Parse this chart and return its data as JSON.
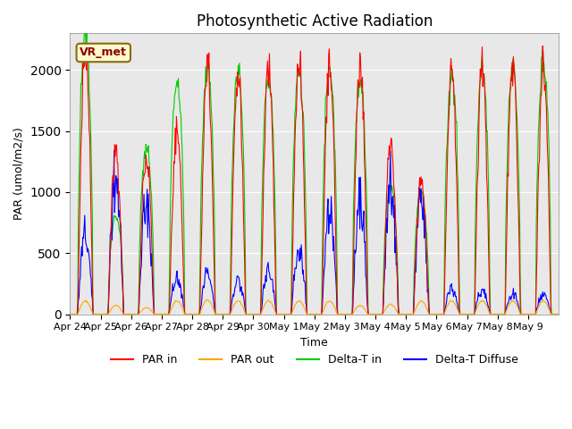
{
  "title": "Photosynthetic Active Radiation",
  "ylabel": "PAR (umol/m2/s)",
  "xlabel": "Time",
  "ylim": [
    0,
    2300
  ],
  "annotation": "VR_met",
  "background_color": "#ffffff",
  "plot_bg_color": "#e8e8e8",
  "colors": {
    "par_in": "#ff0000",
    "par_out": "#ffa500",
    "delta_t_in": "#00cc00",
    "delta_t_diffuse": "#0000ff"
  },
  "legend_labels": [
    "PAR in",
    "PAR out",
    "Delta-T in",
    "Delta-T Diffuse"
  ],
  "tick_labels": [
    "Apr 24",
    "Apr 25",
    "Apr 26",
    "Apr 27",
    "Apr 28",
    "Apr 29",
    "Apr 30",
    "May 1",
    "May 2",
    "May 3",
    "May 4",
    "May 5",
    "May 6",
    "May 7",
    "May 8",
    "May 9"
  ],
  "par_in_peaks": [
    2200,
    1350,
    1300,
    1500,
    2050,
    2000,
    2020,
    2060,
    2060,
    2060,
    1400,
    1120,
    2060,
    2070,
    2060,
    2060
  ],
  "par_out_peaks": [
    120,
    80,
    60,
    120,
    130,
    120,
    120,
    120,
    120,
    80,
    90,
    120,
    120,
    120,
    120,
    120
  ],
  "delta_t_peaks": [
    2250,
    800,
    1350,
    1900,
    2000,
    1970,
    1900,
    1980,
    1990,
    1900,
    1050,
    1000,
    1950,
    2010,
    1990,
    2060
  ],
  "delta_t_diff_peaks": [
    620,
    1100,
    870,
    280,
    310,
    280,
    350,
    550,
    870,
    870,
    970,
    870,
    200,
    200,
    160,
    160
  ],
  "n_days": 16,
  "pts_per_day": 48
}
